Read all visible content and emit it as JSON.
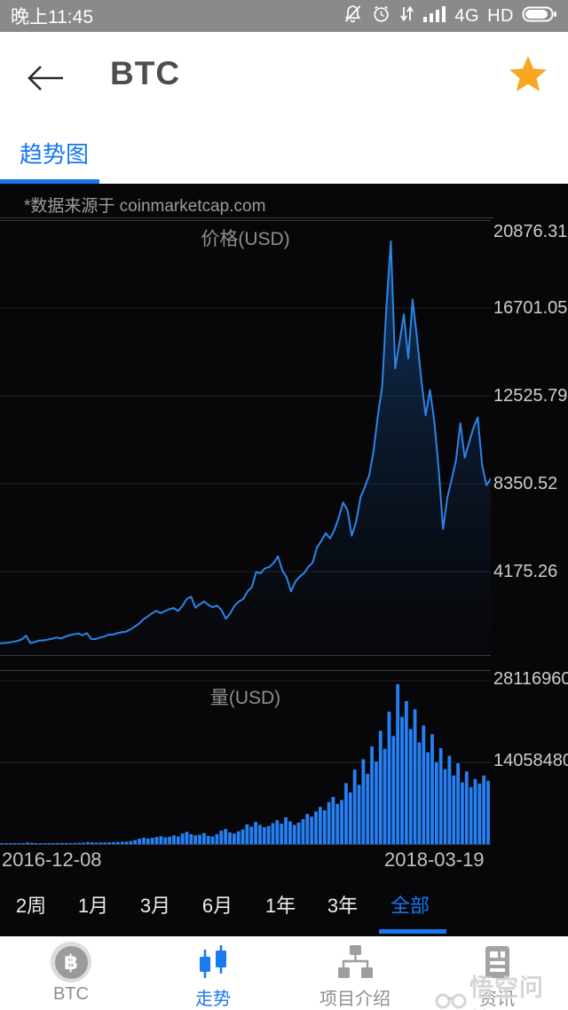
{
  "status_bar": {
    "time": "晚上11:45",
    "network_type": "4G",
    "hd_label": "HD",
    "icons": [
      "muted-bell",
      "alarm-clock",
      "vibrate",
      "signal-strength",
      "battery"
    ]
  },
  "header": {
    "title": "BTC"
  },
  "tab_bar": {
    "trend_tab_label": "趋势图"
  },
  "chart_panel": {
    "source_note": "*数据来源于 coinmarketcap.com"
  },
  "chart_data": [
    {
      "type": "area",
      "title": "价格(USD)",
      "series_name": "BTC price (USD)",
      "y_ticks": [
        20876.31,
        16701.05,
        12525.79,
        8350.52,
        4175.26
      ],
      "ylim": [
        0,
        20876.31
      ],
      "x_range": [
        "2016-12-08",
        "2018-03-19"
      ],
      "grid": true,
      "legend": "none",
      "line_color": "#2b85e8",
      "fill_top_color": "rgba(27,96,178,0.55)",
      "fill_bottom_color": "rgba(10,25,50,0.05)",
      "values": [
        770,
        780,
        800,
        835,
        880,
        950,
        1130,
        777,
        830,
        895,
        905,
        940,
        985,
        1045,
        995,
        1080,
        1150,
        1190,
        1230,
        1150,
        1250,
        975,
        965,
        1040,
        1085,
        1180,
        1175,
        1245,
        1290,
        1320,
        1420,
        1550,
        1700,
        1900,
        2040,
        2190,
        2310,
        2200,
        2300,
        2390,
        2440,
        2300,
        2540,
        2870,
        2980,
        2460,
        2620,
        2760,
        2590,
        2480,
        2560,
        2340,
        1930,
        2190,
        2560,
        2750,
        2870,
        3230,
        3440,
        4160,
        4090,
        4330,
        4390,
        4580,
        4900,
        4230,
        3900,
        3230,
        3700,
        3930,
        4100,
        4400,
        4610,
        5320,
        5640,
        6000,
        5750,
        6150,
        6750,
        7460,
        7100,
        5880,
        6550,
        7700,
        8200,
        8750,
        9900,
        11600,
        13000,
        16850,
        19870,
        13830,
        15100,
        16400,
        14300,
        17100,
        15300,
        13300,
        11600,
        12800,
        11300,
        9050,
        6200,
        7700,
        8560,
        9470,
        11230,
        9580,
        10300,
        11000,
        11500,
        9250,
        8270,
        8600
      ]
    },
    {
      "type": "bar",
      "title": "量(USD)",
      "series_name": "BTC volume (USD)",
      "y_ticks": [
        28116960,
        14058480
      ],
      "ylim": [
        0,
        29500000
      ],
      "x_labels": [
        "2016-12-08",
        "2018-03-19"
      ],
      "grid": true,
      "legend": "none",
      "bar_color": "#2680f5",
      "values": [
        90000,
        110000,
        100000,
        130000,
        160000,
        140000,
        260000,
        210000,
        150000,
        130000,
        140000,
        160000,
        150000,
        170000,
        200000,
        180000,
        170000,
        190000,
        210000,
        230000,
        340000,
        290000,
        240000,
        260000,
        280000,
        300000,
        320000,
        350000,
        380000,
        420000,
        520000,
        680000,
        900000,
        1100000,
        950000,
        1050000,
        1200000,
        1350000,
        1150000,
        1250000,
        1500000,
        1300000,
        1800000,
        2100000,
        1700000,
        1500000,
        1600000,
        1900000,
        1400000,
        1300000,
        1700000,
        2300000,
        2600000,
        2000000,
        1800000,
        2200000,
        2500000,
        3400000,
        3000000,
        3800000,
        3300000,
        2900000,
        3100000,
        3600000,
        4100000,
        3500000,
        4600000,
        3900000,
        3300000,
        3700000,
        4300000,
        5200000,
        4700000,
        5600000,
        6400000,
        5800000,
        7200000,
        8100000,
        6900000,
        7600000,
        10500000,
        8900000,
        12800000,
        10200000,
        14600000,
        12100000,
        16800000,
        14200000,
        19500000,
        16400000,
        22800000,
        18600000,
        27500000,
        21900000,
        24600000,
        19800000,
        23200000,
        17500000,
        20400000,
        15800000,
        18900000,
        14100000,
        16500000,
        12900000,
        15200000,
        11800000,
        13900000,
        10600000,
        12500000,
        9800000,
        11200000,
        10400000,
        11800000,
        10900000
      ]
    }
  ],
  "range_selector": {
    "options": [
      "2周",
      "1月",
      "3月",
      "6月",
      "1年",
      "3年",
      "全部"
    ],
    "selected": "全部"
  },
  "bottom_nav": {
    "items": [
      {
        "id": "btc",
        "label": "BTC",
        "active": false
      },
      {
        "id": "trend",
        "label": "走势",
        "active": true
      },
      {
        "id": "project-intro",
        "label": "项目介绍",
        "active": false
      },
      {
        "id": "news",
        "label": "资讯",
        "active": false
      }
    ],
    "btc_symbol": "฿"
  },
  "watermark": {
    "text": "悟空问答"
  },
  "colors": {
    "accent_blue": "#1577f2",
    "star_orange": "#f7a721",
    "status_bar_bg": "#8a8a8a",
    "panel_bg": "#070709",
    "price_line": "#2b85e8",
    "volume_bar": "#2680f5"
  }
}
